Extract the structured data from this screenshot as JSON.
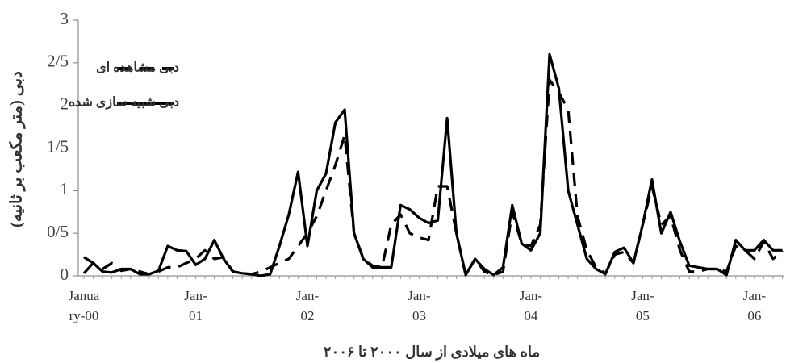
{
  "chart_data": {
    "type": "line",
    "y_label": "دبی (متر مکعب بر ثانیه)",
    "x_label": "ماه های میلادی از سال ۲۰۰۰ تا ۲۰۰۶",
    "categories": [
      "January-00",
      null,
      null,
      null,
      null,
      null,
      null,
      null,
      null,
      null,
      null,
      null,
      "Jan-01",
      null,
      null,
      null,
      null,
      null,
      null,
      null,
      null,
      null,
      null,
      null,
      "Jan-02",
      null,
      null,
      null,
      null,
      null,
      null,
      null,
      null,
      null,
      null,
      null,
      "Jan-03",
      null,
      null,
      null,
      null,
      null,
      null,
      null,
      null,
      null,
      null,
      null,
      "Jan-04",
      null,
      null,
      null,
      null,
      null,
      null,
      null,
      null,
      null,
      null,
      null,
      "Jan-05",
      null,
      null,
      null,
      null,
      null,
      null,
      null,
      null,
      null,
      null,
      null,
      "Jan-06",
      null,
      null,
      null
    ],
    "series": [
      {
        "name": "دبی مشاهده ای",
        "color": "#000000",
        "dash": true,
        "values": [
          0.22,
          0.15,
          0.08,
          0.15,
          0.06,
          0.08,
          0.05,
          0.02,
          0.05,
          0.1,
          0.1,
          0.15,
          0.2,
          0.3,
          0.2,
          0.22,
          0.05,
          0.03,
          0.02,
          0.05,
          0.1,
          0.15,
          0.2,
          0.35,
          0.5,
          0.7,
          1.0,
          1.3,
          1.65,
          0.5,
          0.2,
          0.12,
          0.1,
          0.6,
          0.72,
          0.5,
          0.45,
          0.42,
          1.05,
          1.05,
          0.5,
          0.01,
          0.2,
          0.05,
          0.01,
          0.05,
          0.75,
          0.38,
          0.35,
          0.6,
          2.3,
          2.15,
          1.95,
          0.7,
          0.3,
          0.1,
          0.03,
          0.25,
          0.28,
          0.15,
          0.6,
          1.05,
          0.6,
          0.7,
          0.3,
          0.05,
          0.05,
          0.08,
          0.08,
          0.05,
          0.35,
          0.3,
          0.2,
          0.4,
          0.2,
          0.3
        ]
      },
      {
        "name": "دبی شبیه سازی شده",
        "color": "#000000",
        "dash": false,
        "values": [
          0.03,
          0.15,
          0.05,
          0.04,
          0.08,
          0.08,
          0.02,
          0.02,
          0.06,
          0.35,
          0.3,
          0.29,
          0.13,
          0.2,
          0.42,
          0.2,
          0.05,
          0.03,
          0.02,
          0.0,
          0.02,
          0.35,
          0.72,
          1.22,
          0.35,
          1.0,
          1.2,
          1.8,
          1.95,
          0.5,
          0.2,
          0.1,
          0.1,
          0.1,
          0.83,
          0.78,
          0.68,
          0.62,
          0.65,
          1.85,
          0.5,
          0.01,
          0.2,
          0.08,
          0.01,
          0.1,
          0.83,
          0.38,
          0.3,
          0.5,
          2.6,
          2.2,
          1.0,
          0.6,
          0.2,
          0.08,
          0.02,
          0.28,
          0.33,
          0.15,
          0.6,
          1.13,
          0.5,
          0.75,
          0.4,
          0.12,
          0.1,
          0.08,
          0.08,
          0.01,
          0.42,
          0.3,
          0.3,
          0.42,
          0.3,
          0.3
        ]
      }
    ],
    "ylim": [
      0,
      3
    ],
    "yticks": [
      0,
      {
        "value": 0.5,
        "label": "0/5"
      },
      1,
      {
        "value": 1.5,
        "label": "1/5"
      },
      2,
      {
        "value": 2.5,
        "label": "2/5"
      },
      3
    ],
    "legend": "upper left"
  }
}
